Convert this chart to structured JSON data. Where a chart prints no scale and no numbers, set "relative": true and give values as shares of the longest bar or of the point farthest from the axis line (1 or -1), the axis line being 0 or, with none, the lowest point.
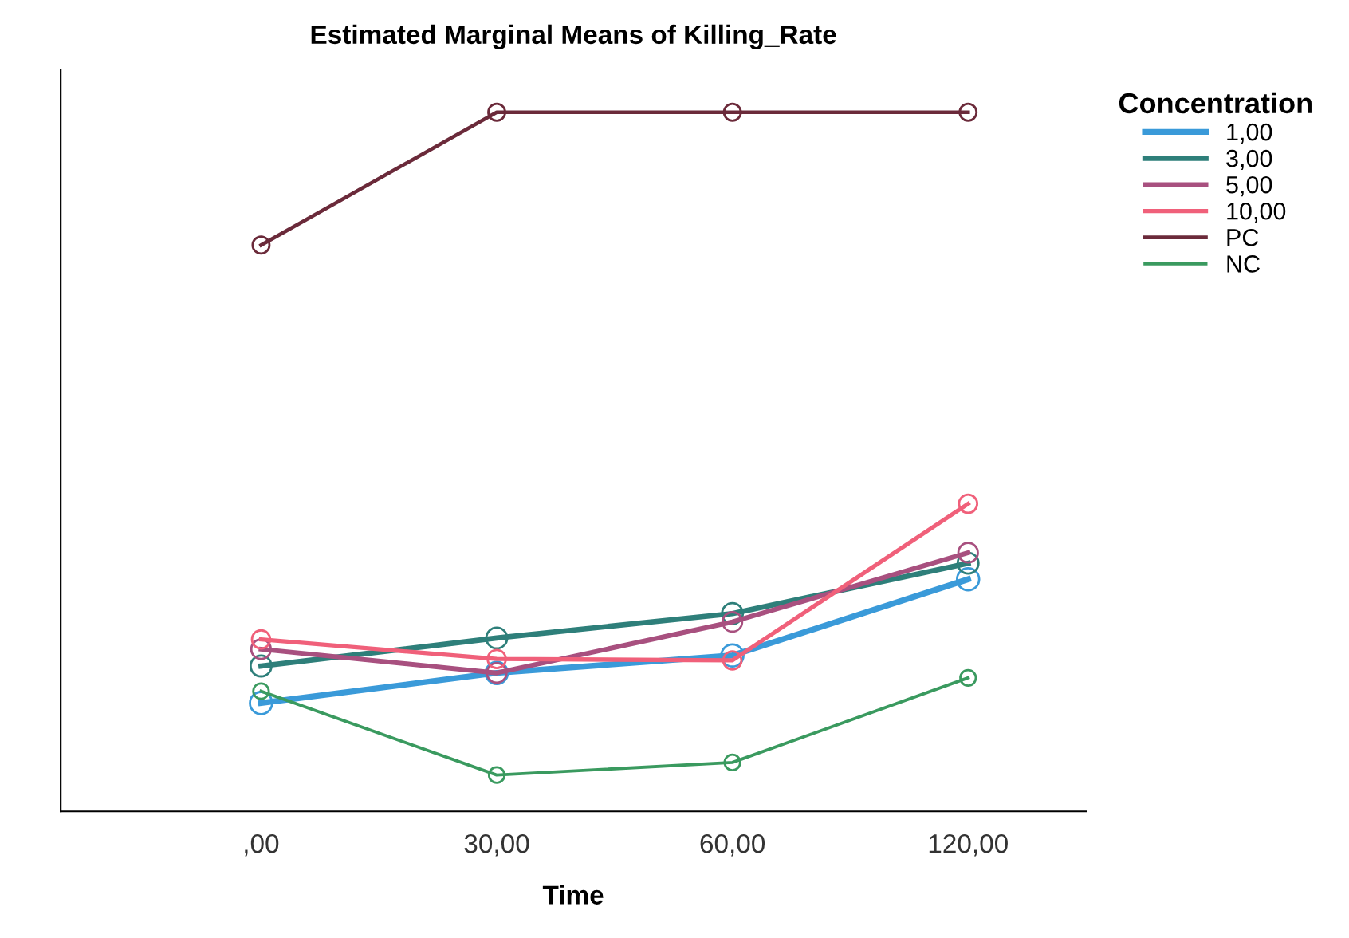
{
  "chart_data": {
    "type": "line",
    "title": "Estimated Marginal Means of Killing_Rate",
    "xlabel": "Time",
    "legend_title": "Concentration",
    "relative": true,
    "categories": [
      ",00",
      "30,00",
      "60,00",
      "120,00"
    ],
    "marker": "circle",
    "line_style": "solid",
    "legend": "right",
    "series": [
      {
        "name": "1,00",
        "color": "#3a9ad9",
        "values": [
          0.155,
          0.198,
          0.223,
          0.332
        ]
      },
      {
        "name": "3,00",
        "color": "#2e7f7a",
        "values": [
          0.208,
          0.248,
          0.283,
          0.355
        ]
      },
      {
        "name": "5,00",
        "color": "#a8507f",
        "values": [
          0.232,
          0.198,
          0.271,
          0.37
        ]
      },
      {
        "name": "10,00",
        "color": "#f0607a",
        "values": [
          0.246,
          0.218,
          0.216,
          0.44
        ]
      },
      {
        "name": "PC",
        "color": "#6b2a3a",
        "values": [
          0.81,
          1,
          1,
          1
        ]
      },
      {
        "name": "NC",
        "color": "#3a9a5f",
        "values": [
          0.172,
          0.052,
          0.07,
          0.191
        ]
      }
    ]
  }
}
